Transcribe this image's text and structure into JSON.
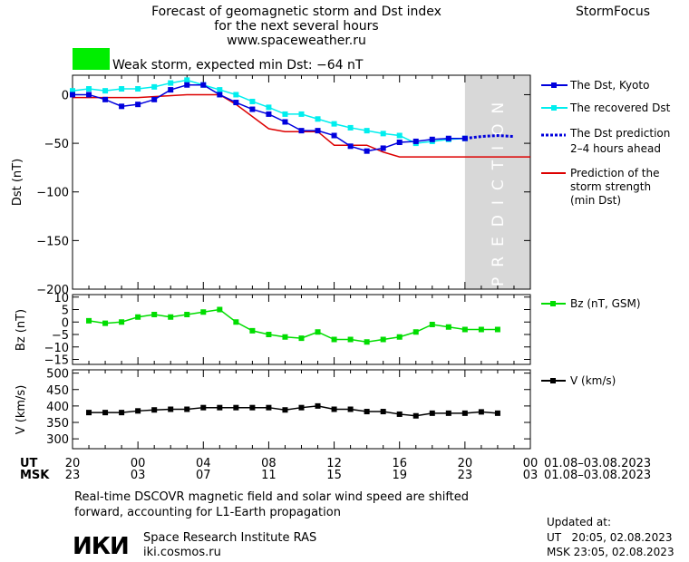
{
  "header": {
    "title_line1": "Forecast of geomagnetic storm and Dst index",
    "title_line2": "for the next several hours",
    "title_line3": "www.spaceweather.ru",
    "brand": "StormFocus",
    "storm_text": "Weak storm, expected min Dst: −64 nT",
    "storm_color": "#00ee00"
  },
  "prediction_label": "PREDICTION",
  "time_axis": {
    "ut_label": "UT",
    "msk_label": "MSK",
    "ut_ticks": [
      "20",
      "00",
      "04",
      "08",
      "12",
      "16",
      "20",
      "00"
    ],
    "msk_ticks": [
      "23",
      "03",
      "07",
      "11",
      "15",
      "19",
      "23",
      "03"
    ],
    "ut_range": "01.08–03.08.2023",
    "msk_range": "01.08–03.08.2023"
  },
  "legend": {
    "dst_kyoto": "The Dst, Kyoto",
    "dst_recovered": "The recovered Dst",
    "dst_prediction_1": "The Dst prediction",
    "dst_prediction_2": "2–4 hours ahead",
    "storm_strength_1": "Prediction of the",
    "storm_strength_2": "storm strength",
    "storm_strength_3": "(min Dst)",
    "bz": "Bz (nT, GSM)",
    "v": "V (km/s)"
  },
  "colors": {
    "dst_kyoto": "#0000dd",
    "dst_recovered": "#00eeee",
    "dst_prediction": "#0000dd",
    "storm_strength": "#dd0000",
    "bz": "#00dd00",
    "v": "#000000",
    "prediction_zone": "#d8d8d8"
  },
  "footer": {
    "note_line1": "Real-time DSCOVR magnetic field and solar wind speed are shifted",
    "note_line2": "forward, accounting for L1-Earth propagation",
    "logo_text": "ИКИ",
    "institute": "Space Research Institute RAS",
    "site": "iki.cosmos.ru",
    "updated_label": "Updated at:",
    "updated_ut": "UT   20:05, 02.08.2023",
    "updated_msk": "MSK 23:05, 02.08.2023"
  },
  "chart_data": [
    {
      "type": "line",
      "ylabel": "Dst (nT)",
      "ylim": [
        -200,
        20
      ],
      "yticks": [
        0,
        -50,
        -100,
        -150,
        -200
      ],
      "xlim": [
        0,
        28
      ],
      "prediction_start": 24,
      "series": [
        {
          "name": "The Dst, Kyoto",
          "x": [
            0,
            1,
            2,
            3,
            4,
            5,
            6,
            7,
            8,
            9,
            10,
            11,
            12,
            13,
            14,
            15,
            16,
            17,
            18,
            19,
            20,
            21,
            22,
            23,
            24
          ],
          "y": [
            0,
            0,
            -5,
            -12,
            -10,
            -5,
            5,
            10,
            10,
            0,
            -8,
            -15,
            -20,
            -28,
            -37,
            -37,
            -42,
            -53,
            -58,
            -55,
            -49,
            -48,
            -46,
            -45,
            -45
          ]
        },
        {
          "name": "The recovered Dst",
          "x": [
            0,
            1,
            2,
            3,
            4,
            5,
            6,
            7,
            8,
            9,
            10,
            11,
            12,
            13,
            14,
            15,
            16,
            17,
            18,
            19,
            20,
            21,
            22,
            23,
            24
          ],
          "y": [
            4,
            6,
            4,
            6,
            6,
            8,
            12,
            15,
            10,
            5,
            0,
            -7,
            -13,
            -20,
            -20,
            -25,
            -30,
            -34,
            -37,
            -40,
            -42,
            -50,
            -48,
            -46,
            -45
          ]
        },
        {
          "name": "The Dst prediction",
          "x": [
            24,
            25,
            26,
            27
          ],
          "y": [
            -45,
            -43,
            -42,
            -43
          ]
        },
        {
          "name": "Prediction of the storm strength (min Dst)",
          "x": [
            0,
            2,
            4,
            7,
            9,
            10,
            12,
            13,
            15,
            16,
            18,
            19,
            20,
            21,
            22,
            24,
            26,
            28
          ],
          "y": [
            -3,
            -3,
            -3,
            0,
            0,
            -10,
            -35,
            -38,
            -38,
            -52,
            -52,
            -59,
            -64,
            -64,
            -64,
            -64,
            -64,
            -64
          ]
        }
      ]
    },
    {
      "type": "line",
      "ylabel": "Bz (nT)",
      "ylim": [
        -17,
        11
      ],
      "yticks": [
        10,
        5,
        0,
        -5,
        -10,
        -15
      ],
      "xlim": [
        0,
        28
      ],
      "series": [
        {
          "name": "Bz (nT, GSM)",
          "x": [
            1,
            2,
            3,
            4,
            5,
            6,
            7,
            8,
            9,
            10,
            11,
            12,
            13,
            14,
            15,
            16,
            17,
            18,
            19,
            20,
            21,
            22,
            23,
            24,
            25,
            26
          ],
          "y": [
            0.5,
            -0.5,
            0,
            2,
            3,
            2,
            3,
            4,
            5,
            0,
            -3.5,
            -5,
            -6,
            -6.5,
            -4,
            -7,
            -7,
            -8,
            -7,
            -6,
            -4,
            -1,
            -2,
            -3,
            -3,
            -3
          ]
        }
      ]
    },
    {
      "type": "line",
      "ylabel": "V (km/s)",
      "ylim": [
        270,
        510
      ],
      "yticks": [
        500,
        450,
        400,
        350,
        300
      ],
      "xlim": [
        0,
        28
      ],
      "series": [
        {
          "name": "V (km/s)",
          "x": [
            1,
            2,
            3,
            4,
            5,
            6,
            7,
            8,
            9,
            10,
            11,
            12,
            13,
            14,
            15,
            16,
            17,
            18,
            19,
            20,
            21,
            22,
            23,
            24,
            25,
            26
          ],
          "y": [
            380,
            380,
            380,
            385,
            388,
            390,
            390,
            395,
            395,
            395,
            395,
            395,
            388,
            395,
            400,
            390,
            390,
            383,
            383,
            375,
            370,
            378,
            378,
            378,
            382,
            378
          ]
        }
      ]
    }
  ]
}
